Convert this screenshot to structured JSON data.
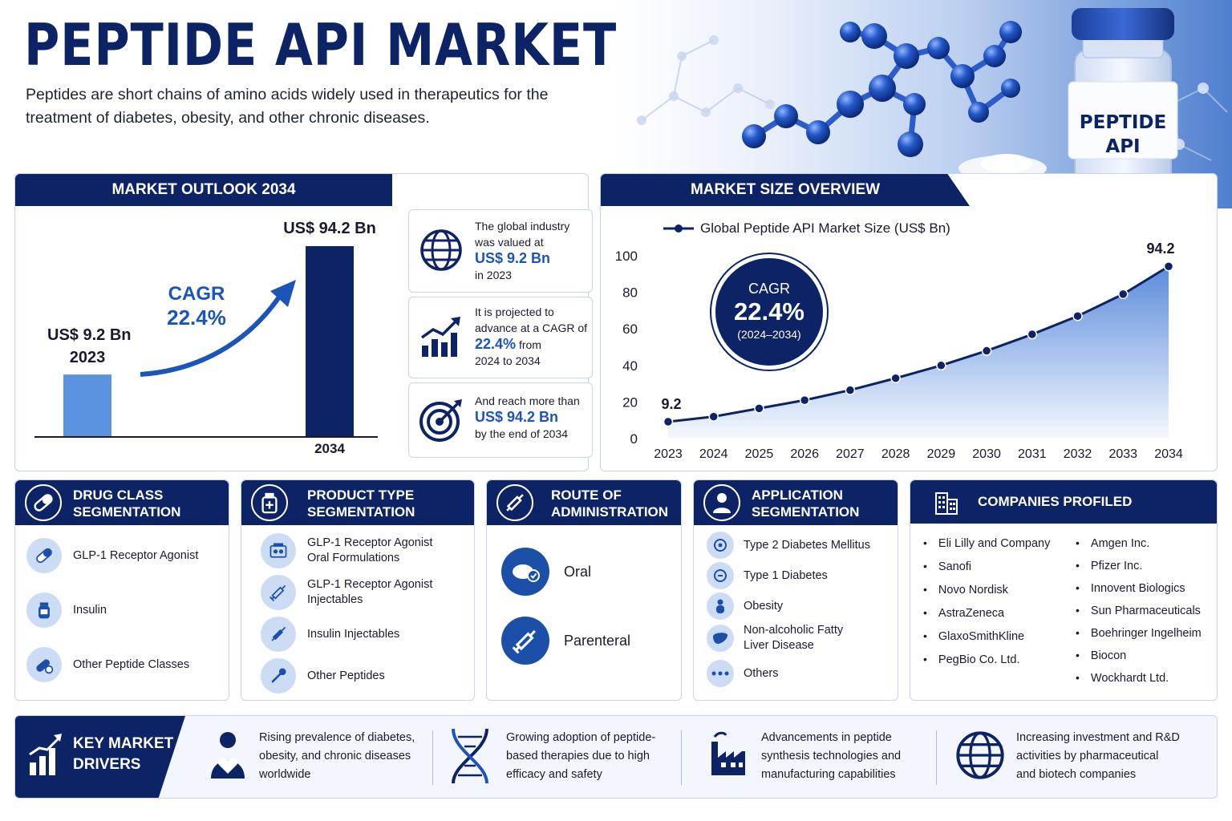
{
  "header": {
    "title": "PEPTIDE API MARKET",
    "subtitle": "Peptides are short chains of amino acids widely used in therapeutics for the treatment of diabetes, obesity, and other chronic diseases.",
    "vial_label_line1": "PEPTIDE",
    "vial_label_line2": "API"
  },
  "outlook": {
    "heading": "MARKET OUTLOOK 2034",
    "start_value": "US$ 9.2 Bn",
    "start_year": "2023",
    "end_value": "US$ 94.2 Bn",
    "end_year": "2034",
    "cagr_label": "CAGR",
    "cagr_value": "22.4%",
    "bar_start": 9.2,
    "bar_end": 94.2,
    "colors": {
      "start_bar": "#5b93e0",
      "end_bar": "#0c2366",
      "arrow": "#1c55b8"
    }
  },
  "info_cards": [
    {
      "icon": "globe-icon",
      "pre": "The global industry was valued at",
      "highlight": "US$ 9.2 Bn",
      "mid": "",
      "post": "in 2023"
    },
    {
      "icon": "growth-chart-icon",
      "pre": "It is projected to advance at a CAGR of",
      "highlight": "22.4%",
      "mid": "from",
      "post": "2024 to 2034"
    },
    {
      "icon": "target-icon",
      "pre": "And reach more than",
      "highlight": "US$ 94.2 Bn",
      "mid": "",
      "post": "by the end of 2034"
    }
  ],
  "size_overview": {
    "heading": "MARKET SIZE OVERVIEW",
    "cagr_label": "CAGR",
    "cagr_value": "22.4%",
    "cagr_period": "(2024–2034)"
  },
  "chart_data": {
    "type": "line",
    "legend": [
      "Global Peptide API Market Size (US$ Bn)"
    ],
    "legend_position": "top-left",
    "series": [
      {
        "name": "Global Peptide API Market Size (US$ Bn)",
        "values": [
          9.2,
          12,
          16.5,
          21,
          26.5,
          33,
          40,
          48,
          57,
          67,
          79,
          94.2
        ]
      }
    ],
    "x": [
      "2023",
      "2024",
      "2025",
      "2026",
      "2027",
      "2028",
      "2029",
      "2030",
      "2031",
      "2032",
      "2033",
      "2034"
    ],
    "y_ticks": [
      "0",
      "20",
      "40",
      "60",
      "80",
      "100"
    ],
    "ylim": [
      0,
      100
    ],
    "data_labels": [
      "9.2",
      "94.2"
    ],
    "grid": false,
    "line_color": "#0c2366",
    "area_color": "#3f78d6"
  },
  "segments": [
    {
      "title1": "DRUG CLASS",
      "title2": "SEGMENTATION",
      "icon": "capsule-icon",
      "items": [
        {
          "icon": "capsule-icon",
          "l1": "GLP-1 Receptor Agonist",
          "l2": ""
        },
        {
          "icon": "insulin-vial-icon",
          "l1": "Insulin",
          "l2": ""
        },
        {
          "icon": "pills-icon",
          "l1": "Other Peptide Classes",
          "l2": ""
        }
      ]
    },
    {
      "title1": "PRODUCT TYPE",
      "title2": "SEGMENTATION",
      "icon": "medicine-bottle-icon",
      "items": [
        {
          "icon": "tablet-box-icon",
          "l1": "GLP-1 Receptor Agonist",
          "l2": "Oral Formulations"
        },
        {
          "icon": "syringe-icon",
          "l1": "GLP-1 Receptor Agonist",
          "l2": "Injectables"
        },
        {
          "icon": "syringe-icon",
          "l1": "Insulin Injectables",
          "l2": ""
        },
        {
          "icon": "pipette-icon",
          "l1": "Other Peptides",
          "l2": ""
        }
      ]
    },
    {
      "title1": "ROUTE OF",
      "title2": "ADMINISTRATION",
      "icon": "syringe-icon",
      "items": [
        {
          "icon": "oral-pill-icon",
          "l1": "Oral",
          "l2": ""
        },
        {
          "icon": "syringe-icon",
          "l1": "Parenteral",
          "l2": ""
        }
      ]
    },
    {
      "title1": "APPLICATION",
      "title2": "SEGMENTATION",
      "icon": "doctor-icon",
      "items": [
        {
          "icon": "glucose-icon",
          "l1": "Type 2 Diabetes Mellitus",
          "l2": ""
        },
        {
          "icon": "glucose-icon",
          "l1": "Type 1 Diabetes",
          "l2": ""
        },
        {
          "icon": "person-icon",
          "l1": "Obesity",
          "l2": ""
        },
        {
          "icon": "liver-icon",
          "l1": "Non-alcoholic Fatty",
          "l2": "Liver Disease"
        },
        {
          "icon": "more-icon",
          "l1": "Others",
          "l2": ""
        }
      ]
    }
  ],
  "companies": {
    "heading": "COMPANIES PROFILED",
    "col1": [
      "Eli Lilly and Company",
      "Sanofi",
      "Novo Nordisk",
      "AstraZeneca",
      "GlaxoSmithKline",
      "PegBio Co. Ltd."
    ],
    "col2": [
      "Amgen Inc.",
      "Pfizer Inc.",
      "Innovent Biologics",
      "Sun Pharmaceuticals",
      "Boehringer Ingelheim",
      "Biocon",
      "Wockhardt Ltd."
    ]
  },
  "drivers": {
    "heading1": "KEY MARKET",
    "heading2": "DRIVERS",
    "items": [
      {
        "icon": "patient-heart-icon",
        "l1": "Rising prevalence of diabetes,",
        "l2": "obesity, and chronic diseases",
        "l3": "worldwide"
      },
      {
        "icon": "dna-icon",
        "l1": "Growing adoption of peptide-",
        "l2": "based therapies due to high",
        "l3": "efficacy and safety"
      },
      {
        "icon": "factory-icon",
        "l1": "Advancements in peptide",
        "l2": "synthesis technologies and",
        "l3": "manufacturing capabilities"
      },
      {
        "icon": "globe-icon",
        "l1": "Increasing investment and R&D",
        "l2": "activities by pharmaceutical",
        "l3": "and biotech companies"
      }
    ]
  }
}
